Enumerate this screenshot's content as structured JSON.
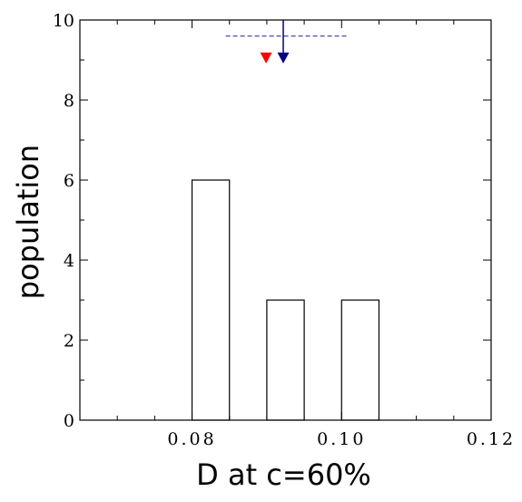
{
  "chart_data": {
    "type": "bar",
    "subtype": "histogram",
    "xlabel": "D at c=60%",
    "ylabel": "population",
    "xlim": [
      0.065,
      0.12
    ],
    "ylim": [
      0,
      10
    ],
    "x_ticks": [
      0.08,
      0.1,
      0.12
    ],
    "x_tick_labels": [
      "0.08",
      "0.10",
      "0.12"
    ],
    "y_ticks": [
      0,
      2,
      4,
      6,
      8,
      10
    ],
    "y_tick_labels": [
      "0",
      "2",
      "4",
      "6",
      "8",
      "10"
    ],
    "bins": [
      {
        "x0": 0.08,
        "x1": 0.085,
        "count": 6
      },
      {
        "x0": 0.09,
        "x1": 0.095,
        "count": 3
      },
      {
        "x0": 0.1,
        "x1": 0.105,
        "count": 3
      }
    ],
    "markers": [
      {
        "shape": "triangle-down",
        "color": "#ff0000",
        "x": 0.0899,
        "y": 9.05
      },
      {
        "shape": "triangle-down",
        "color": "#000080",
        "x": 0.0922,
        "y": 9.05,
        "line_from_y": 10
      }
    ],
    "range_line": {
      "x0": 0.0845,
      "x1": 0.1008,
      "y": 9.6,
      "color": "#4b4baf",
      "style": "dashed"
    },
    "grid": false,
    "colors": {
      "bar_fill": "#ffffff",
      "bar_edge": "#000000",
      "axis": "#000000"
    }
  }
}
